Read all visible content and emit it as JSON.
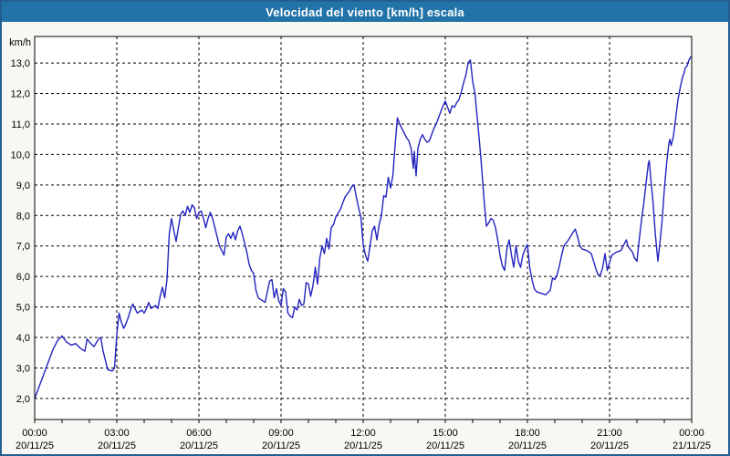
{
  "window": {
    "title": "Velocidad del viento [km/h] escala"
  },
  "colors": {
    "title_bar_bg": "#2173a8",
    "title_text": "#ffffff",
    "page_bg": "#f7f7f3",
    "frame_border": "#255e91",
    "plot_bg": "#ffffff",
    "axis": "#000000",
    "grid": "#000000",
    "line": "#2323c0",
    "label": "#000000"
  },
  "chart_data": {
    "type": "line",
    "title": "Velocidad del viento [km/h] escala",
    "ylabel": "km/h",
    "xlabel": "",
    "ylim": [
      1.31,
      13.87
    ],
    "xlim_hours": [
      0,
      24
    ],
    "grid": "dashed",
    "legend": "none",
    "y_ticks": [
      {
        "value": 2,
        "label": "2,0"
      },
      {
        "value": 3,
        "label": "3,0"
      },
      {
        "value": 4,
        "label": "4,0"
      },
      {
        "value": 5,
        "label": "5,0"
      },
      {
        "value": 6,
        "label": "6,0"
      },
      {
        "value": 7,
        "label": "7,0"
      },
      {
        "value": 8,
        "label": "8,0"
      },
      {
        "value": 9,
        "label": "9,0"
      },
      {
        "value": 10,
        "label": "10,0"
      },
      {
        "value": 11,
        "label": "11,0"
      },
      {
        "value": 12,
        "label": "12,0"
      },
      {
        "value": 13,
        "label": "13,0"
      }
    ],
    "x_ticks": [
      {
        "hour": 0,
        "time": "00:00",
        "date": "20/11/25"
      },
      {
        "hour": 3,
        "time": "03:00",
        "date": "20/11/25"
      },
      {
        "hour": 6,
        "time": "06:00",
        "date": "20/11/25"
      },
      {
        "hour": 9,
        "time": "09:00",
        "date": "20/11/25"
      },
      {
        "hour": 12,
        "time": "12:00",
        "date": "20/11/25"
      },
      {
        "hour": 15,
        "time": "15:00",
        "date": "20/11/25"
      },
      {
        "hour": 18,
        "time": "18:00",
        "date": "20/11/25"
      },
      {
        "hour": 21,
        "time": "21:00",
        "date": "20/11/25"
      },
      {
        "hour": 24,
        "time": "00:00",
        "date": "21/11/25"
      }
    ],
    "minor_x_tick_every_hours": 1,
    "series": [
      {
        "name": "Velocidad del viento",
        "unit": "km/h",
        "points": [
          [
            "00:00",
            2.0
          ],
          [
            "00:10",
            2.4
          ],
          [
            "00:20",
            2.8
          ],
          [
            "00:30",
            3.2
          ],
          [
            "00:40",
            3.6
          ],
          [
            "00:50",
            3.9
          ],
          [
            "01:00",
            4.05
          ],
          [
            "01:10",
            3.85
          ],
          [
            "01:20",
            3.75
          ],
          [
            "01:30",
            3.8
          ],
          [
            "01:40",
            3.65
          ],
          [
            "01:50",
            3.55
          ],
          [
            "01:55",
            3.95
          ],
          [
            "02:00",
            3.85
          ],
          [
            "02:10",
            3.7
          ],
          [
            "02:20",
            3.95
          ],
          [
            "02:25",
            4.0
          ],
          [
            "02:30",
            3.55
          ],
          [
            "02:40",
            2.95
          ],
          [
            "02:50",
            2.9
          ],
          [
            "02:55",
            3.0
          ],
          [
            "03:00",
            4.1
          ],
          [
            "03:05",
            4.8
          ],
          [
            "03:10",
            4.5
          ],
          [
            "03:15",
            4.3
          ],
          [
            "03:20",
            4.45
          ],
          [
            "03:25",
            4.65
          ],
          [
            "03:30",
            4.9
          ],
          [
            "03:35",
            5.1
          ],
          [
            "03:40",
            4.95
          ],
          [
            "03:45",
            4.8
          ],
          [
            "03:50",
            4.85
          ],
          [
            "03:55",
            4.9
          ],
          [
            "04:00",
            4.8
          ],
          [
            "04:05",
            4.95
          ],
          [
            "04:10",
            5.15
          ],
          [
            "04:15",
            4.95
          ],
          [
            "04:20",
            5.0
          ],
          [
            "04:25",
            5.05
          ],
          [
            "04:30",
            4.95
          ],
          [
            "04:35",
            5.35
          ],
          [
            "04:40",
            5.65
          ],
          [
            "04:45",
            5.3
          ],
          [
            "04:50",
            5.9
          ],
          [
            "04:55",
            7.4
          ],
          [
            "05:00",
            7.9
          ],
          [
            "05:05",
            7.5
          ],
          [
            "05:10",
            7.15
          ],
          [
            "05:15",
            7.6
          ],
          [
            "05:20",
            8.05
          ],
          [
            "05:25",
            8.15
          ],
          [
            "05:30",
            8.0
          ],
          [
            "05:35",
            8.3
          ],
          [
            "05:40",
            8.1
          ],
          [
            "05:45",
            8.35
          ],
          [
            "05:50",
            8.25
          ],
          [
            "05:55",
            7.9
          ],
          [
            "06:00",
            8.1
          ],
          [
            "06:05",
            8.15
          ],
          [
            "06:10",
            7.9
          ],
          [
            "06:15",
            7.6
          ],
          [
            "06:20",
            7.9
          ],
          [
            "06:25",
            8.1
          ],
          [
            "06:30",
            7.9
          ],
          [
            "06:35",
            7.6
          ],
          [
            "06:40",
            7.3
          ],
          [
            "06:45",
            7.0
          ],
          [
            "06:50",
            6.85
          ],
          [
            "06:55",
            6.7
          ],
          [
            "07:00",
            7.3
          ],
          [
            "07:05",
            7.4
          ],
          [
            "07:10",
            7.25
          ],
          [
            "07:15",
            7.45
          ],
          [
            "07:20",
            7.2
          ],
          [
            "07:25",
            7.5
          ],
          [
            "07:30",
            7.65
          ],
          [
            "07:35",
            7.4
          ],
          [
            "07:40",
            7.1
          ],
          [
            "07:45",
            6.8
          ],
          [
            "07:50",
            6.4
          ],
          [
            "07:55",
            6.2
          ],
          [
            "08:00",
            6.1
          ],
          [
            "08:05",
            5.55
          ],
          [
            "08:10",
            5.3
          ],
          [
            "08:20",
            5.2
          ],
          [
            "08:25",
            5.15
          ],
          [
            "08:35",
            5.85
          ],
          [
            "08:40",
            5.9
          ],
          [
            "08:45",
            5.3
          ],
          [
            "08:50",
            5.6
          ],
          [
            "08:55",
            5.2
          ],
          [
            "09:00",
            5.05
          ],
          [
            "09:05",
            5.6
          ],
          [
            "09:10",
            5.5
          ],
          [
            "09:15",
            4.8
          ],
          [
            "09:20",
            4.7
          ],
          [
            "09:25",
            4.65
          ],
          [
            "09:30",
            5.0
          ],
          [
            "09:35",
            4.9
          ],
          [
            "09:40",
            5.25
          ],
          [
            "09:45",
            5.05
          ],
          [
            "09:50",
            5.1
          ],
          [
            "09:55",
            5.8
          ],
          [
            "10:00",
            5.75
          ],
          [
            "10:05",
            5.35
          ],
          [
            "10:10",
            5.7
          ],
          [
            "10:15",
            6.3
          ],
          [
            "10:20",
            5.75
          ],
          [
            "10:25",
            6.6
          ],
          [
            "10:30",
            7.0
          ],
          [
            "10:35",
            6.75
          ],
          [
            "10:40",
            7.25
          ],
          [
            "10:45",
            6.9
          ],
          [
            "10:50",
            7.6
          ],
          [
            "10:55",
            7.7
          ],
          [
            "11:00",
            7.95
          ],
          [
            "11:10",
            8.2
          ],
          [
            "11:15",
            8.4
          ],
          [
            "11:20",
            8.6
          ],
          [
            "11:30",
            8.8
          ],
          [
            "11:35",
            8.95
          ],
          [
            "11:40",
            9.0
          ],
          [
            "11:45",
            8.6
          ],
          [
            "11:50",
            8.25
          ],
          [
            "11:55",
            7.95
          ],
          [
            "12:00",
            7.05
          ],
          [
            "12:05",
            6.7
          ],
          [
            "12:10",
            6.5
          ],
          [
            "12:20",
            7.5
          ],
          [
            "12:25",
            7.65
          ],
          [
            "12:30",
            7.2
          ],
          [
            "12:35",
            7.7
          ],
          [
            "12:40",
            8.0
          ],
          [
            "12:45",
            8.65
          ],
          [
            "12:50",
            8.6
          ],
          [
            "12:55",
            9.25
          ],
          [
            "13:00",
            8.9
          ],
          [
            "13:05",
            9.3
          ],
          [
            "13:10",
            10.3
          ],
          [
            "13:15",
            11.2
          ],
          [
            "13:20",
            11.0
          ],
          [
            "13:25",
            10.85
          ],
          [
            "13:30",
            10.7
          ],
          [
            "13:35",
            10.55
          ],
          [
            "13:40",
            10.45
          ],
          [
            "13:45",
            10.2
          ],
          [
            "13:50",
            9.55
          ],
          [
            "13:52",
            10.1
          ],
          [
            "13:56",
            9.3
          ],
          [
            "14:00",
            10.2
          ],
          [
            "14:05",
            10.5
          ],
          [
            "14:10",
            10.65
          ],
          [
            "14:15",
            10.5
          ],
          [
            "14:20",
            10.4
          ],
          [
            "14:25",
            10.45
          ],
          [
            "14:30",
            10.65
          ],
          [
            "14:35",
            10.85
          ],
          [
            "14:40",
            11.0
          ],
          [
            "14:45",
            11.2
          ],
          [
            "14:50",
            11.4
          ],
          [
            "14:55",
            11.6
          ],
          [
            "15:00",
            11.75
          ],
          [
            "15:05",
            11.55
          ],
          [
            "15:10",
            11.35
          ],
          [
            "15:15",
            11.6
          ],
          [
            "15:20",
            11.55
          ],
          [
            "15:25",
            11.7
          ],
          [
            "15:30",
            11.8
          ],
          [
            "15:35",
            12.05
          ],
          [
            "15:40",
            12.35
          ],
          [
            "15:45",
            12.6
          ],
          [
            "15:50",
            13.0
          ],
          [
            "15:55",
            13.1
          ],
          [
            "16:00",
            12.4
          ],
          [
            "16:05",
            12.0
          ],
          [
            "16:10",
            11.2
          ],
          [
            "16:15",
            10.4
          ],
          [
            "16:20",
            9.5
          ],
          [
            "16:25",
            8.5
          ],
          [
            "16:30",
            7.65
          ],
          [
            "16:35",
            7.75
          ],
          [
            "16:40",
            7.9
          ],
          [
            "16:45",
            7.85
          ],
          [
            "16:50",
            7.6
          ],
          [
            "16:55",
            7.2
          ],
          [
            "17:00",
            6.7
          ],
          [
            "17:05",
            6.35
          ],
          [
            "17:10",
            6.2
          ],
          [
            "17:15",
            6.9
          ],
          [
            "17:20",
            7.2
          ],
          [
            "17:25",
            6.7
          ],
          [
            "17:30",
            6.3
          ],
          [
            "17:35",
            7.0
          ],
          [
            "17:40",
            6.5
          ],
          [
            "17:45",
            6.3
          ],
          [
            "17:50",
            6.7
          ],
          [
            "17:55",
            6.9
          ],
          [
            "18:00",
            7.05
          ],
          [
            "18:05",
            6.3
          ],
          [
            "18:10",
            5.9
          ],
          [
            "18:15",
            5.6
          ],
          [
            "18:20",
            5.5
          ],
          [
            "18:30",
            5.45
          ],
          [
            "18:40",
            5.4
          ],
          [
            "18:50",
            5.55
          ],
          [
            "18:55",
            5.95
          ],
          [
            "19:00",
            5.9
          ],
          [
            "19:05",
            6.05
          ],
          [
            "19:10",
            6.35
          ],
          [
            "19:15",
            6.7
          ],
          [
            "19:20",
            7.0
          ],
          [
            "19:30",
            7.2
          ],
          [
            "19:40",
            7.45
          ],
          [
            "19:45",
            7.55
          ],
          [
            "19:50",
            7.3
          ],
          [
            "19:55",
            7.0
          ],
          [
            "20:00",
            6.9
          ],
          [
            "20:10",
            6.85
          ],
          [
            "20:20",
            6.75
          ],
          [
            "20:25",
            6.5
          ],
          [
            "20:30",
            6.25
          ],
          [
            "20:35",
            6.05
          ],
          [
            "20:40",
            6.05
          ],
          [
            "20:45",
            6.3
          ],
          [
            "20:50",
            6.75
          ],
          [
            "20:55",
            6.2
          ],
          [
            "21:00",
            6.45
          ],
          [
            "21:05",
            6.7
          ],
          [
            "21:15",
            6.8
          ],
          [
            "21:25",
            6.85
          ],
          [
            "21:35",
            7.15
          ],
          [
            "21:37",
            7.2
          ],
          [
            "21:40",
            7.0
          ],
          [
            "21:45",
            6.9
          ],
          [
            "21:50",
            6.8
          ],
          [
            "21:55",
            6.6
          ],
          [
            "22:00",
            6.5
          ],
          [
            "22:05",
            7.2
          ],
          [
            "22:10",
            7.85
          ],
          [
            "22:15",
            8.4
          ],
          [
            "22:20",
            9.05
          ],
          [
            "22:25",
            9.7
          ],
          [
            "22:27",
            9.8
          ],
          [
            "22:30",
            9.25
          ],
          [
            "22:35",
            8.5
          ],
          [
            "22:40",
            7.45
          ],
          [
            "22:44",
            6.8
          ],
          [
            "22:46",
            6.5
          ],
          [
            "22:50",
            7.05
          ],
          [
            "22:55",
            7.8
          ],
          [
            "23:00",
            8.85
          ],
          [
            "23:05",
            9.7
          ],
          [
            "23:10",
            10.35
          ],
          [
            "23:12",
            10.5
          ],
          [
            "23:15",
            10.3
          ],
          [
            "23:20",
            10.6
          ],
          [
            "23:25",
            11.2
          ],
          [
            "23:30",
            11.8
          ],
          [
            "23:35",
            12.2
          ],
          [
            "23:38",
            12.4
          ],
          [
            "23:40",
            12.55
          ],
          [
            "23:44",
            12.7
          ],
          [
            "23:46",
            12.85
          ],
          [
            "23:50",
            12.9
          ],
          [
            "23:54",
            13.1
          ],
          [
            "23:58",
            13.2
          ]
        ]
      }
    ]
  }
}
